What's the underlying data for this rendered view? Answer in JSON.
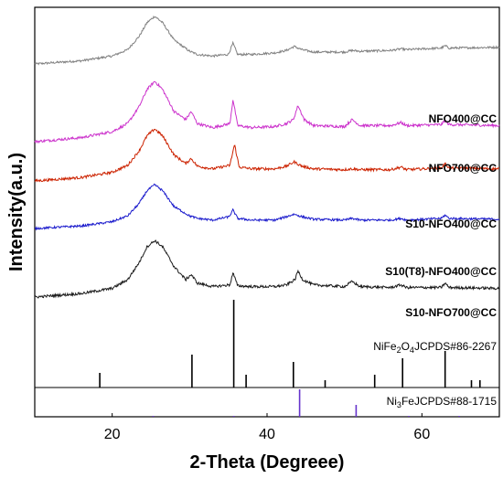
{
  "chart_data": {
    "type": "line",
    "xlabel": "2-Theta (Degreee)",
    "ylabel": "Intensity(a.u.)",
    "xlim": [
      10,
      70
    ],
    "xticks": [
      20,
      40,
      60
    ],
    "yticks": [],
    "grid": false,
    "series": [
      {
        "name": "NFO400@CC",
        "color": "#808080",
        "noise": 0.9,
        "tilt": 2,
        "points": [
          [
            10,
            0
          ],
          [
            16,
            4
          ],
          [
            20,
            10
          ],
          [
            22,
            18
          ],
          [
            23.5,
            35
          ],
          [
            24.5,
            52
          ],
          [
            25.5,
            60
          ],
          [
            26.5,
            52
          ],
          [
            28,
            30
          ],
          [
            30,
            16
          ],
          [
            31,
            12
          ],
          [
            33,
            10
          ],
          [
            35,
            12
          ],
          [
            35.6,
            26
          ],
          [
            36.2,
            12
          ],
          [
            38,
            12
          ],
          [
            41,
            14
          ],
          [
            42.5,
            17
          ],
          [
            43.5,
            22
          ],
          [
            44.5,
            18
          ],
          [
            46,
            15
          ],
          [
            50,
            15
          ],
          [
            51,
            17
          ],
          [
            52,
            16
          ],
          [
            56,
            17
          ],
          [
            57.3,
            19
          ],
          [
            58,
            18
          ],
          [
            62.5,
            20
          ],
          [
            63,
            23
          ],
          [
            63.5,
            20
          ],
          [
            70,
            21
          ]
        ]
      },
      {
        "name": "NFO700@CC",
        "color": "#cc33cc",
        "noise": 1.1,
        "tilt": 2,
        "points": [
          [
            10,
            0
          ],
          [
            16,
            4
          ],
          [
            20,
            10
          ],
          [
            22,
            18
          ],
          [
            23.5,
            35
          ],
          [
            24.5,
            52
          ],
          [
            25.5,
            60
          ],
          [
            26.5,
            52
          ],
          [
            28,
            30
          ],
          [
            29.5,
            22
          ],
          [
            30.2,
            30
          ],
          [
            31,
            18
          ],
          [
            33,
            14
          ],
          [
            35.2,
            18
          ],
          [
            35.6,
            42
          ],
          [
            36.2,
            16
          ],
          [
            38,
            14
          ],
          [
            41,
            15
          ],
          [
            42.5,
            18
          ],
          [
            43.4,
            22
          ],
          [
            44,
            36
          ],
          [
            44.8,
            22
          ],
          [
            46,
            16
          ],
          [
            50,
            15
          ],
          [
            51,
            22
          ],
          [
            52,
            16
          ],
          [
            56,
            16
          ],
          [
            57.3,
            19
          ],
          [
            58,
            16
          ],
          [
            62.5,
            17
          ],
          [
            63,
            21
          ],
          [
            63.5,
            17
          ],
          [
            70,
            16
          ]
        ]
      },
      {
        "name": "S10-NFO400@CC",
        "color": "#cc2200",
        "noise": 1.1,
        "tilt": 2,
        "points": [
          [
            10,
            0
          ],
          [
            16,
            4
          ],
          [
            20,
            10
          ],
          [
            22,
            18
          ],
          [
            23.5,
            35
          ],
          [
            24.5,
            52
          ],
          [
            25.5,
            60
          ],
          [
            26.5,
            52
          ],
          [
            28,
            30
          ],
          [
            29.5,
            20
          ],
          [
            30.2,
            26
          ],
          [
            31,
            17
          ],
          [
            33,
            14
          ],
          [
            35.2,
            18
          ],
          [
            35.8,
            42
          ],
          [
            36.4,
            16
          ],
          [
            38,
            14
          ],
          [
            41,
            14
          ],
          [
            42.5,
            17
          ],
          [
            43.5,
            22
          ],
          [
            44.5,
            17
          ],
          [
            46,
            14
          ],
          [
            50,
            13
          ],
          [
            51,
            14
          ],
          [
            52,
            13
          ],
          [
            56,
            13
          ],
          [
            57.3,
            16
          ],
          [
            58,
            13
          ],
          [
            62.5,
            15
          ],
          [
            63,
            20
          ],
          [
            63.5,
            15
          ],
          [
            70,
            14
          ]
        ]
      },
      {
        "name": "S10(T8)-NFO400@CC",
        "color": "#1a1acc",
        "noise": 0.9,
        "tilt": 0,
        "points": [
          [
            10,
            0
          ],
          [
            16,
            3
          ],
          [
            20,
            8
          ],
          [
            22,
            15
          ],
          [
            23.5,
            30
          ],
          [
            24.5,
            45
          ],
          [
            25.5,
            52
          ],
          [
            26.5,
            45
          ],
          [
            28,
            26
          ],
          [
            30,
            15
          ],
          [
            31,
            12
          ],
          [
            33,
            10
          ],
          [
            35.1,
            14
          ],
          [
            35.6,
            22
          ],
          [
            36.2,
            12
          ],
          [
            38,
            10
          ],
          [
            41,
            10
          ],
          [
            42.5,
            14
          ],
          [
            43.5,
            17
          ],
          [
            44.5,
            14
          ],
          [
            46,
            11
          ],
          [
            50,
            10
          ],
          [
            51,
            12
          ],
          [
            52,
            10
          ],
          [
            56,
            10
          ],
          [
            57.3,
            12
          ],
          [
            58,
            10
          ],
          [
            62.5,
            12
          ],
          [
            63,
            16
          ],
          [
            63.5,
            12
          ],
          [
            70,
            11
          ]
        ]
      },
      {
        "name": "S10-NFO700@CC",
        "color": "#1a1a1a",
        "noise": 1.1,
        "tilt": 0,
        "points": [
          [
            10,
            0
          ],
          [
            16,
            4
          ],
          [
            20,
            10
          ],
          [
            22,
            20
          ],
          [
            23.5,
            40
          ],
          [
            24.5,
            58
          ],
          [
            25.5,
            65
          ],
          [
            26.5,
            58
          ],
          [
            28,
            35
          ],
          [
            29.5,
            20
          ],
          [
            30.2,
            26
          ],
          [
            31,
            16
          ],
          [
            33,
            12
          ],
          [
            35.2,
            14
          ],
          [
            35.6,
            28
          ],
          [
            36.2,
            13
          ],
          [
            38,
            12
          ],
          [
            41,
            12
          ],
          [
            42.5,
            14
          ],
          [
            43.6,
            20
          ],
          [
            44,
            30
          ],
          [
            44.6,
            20
          ],
          [
            46,
            14
          ],
          [
            50,
            12
          ],
          [
            51,
            18
          ],
          [
            52,
            12
          ],
          [
            56,
            11
          ],
          [
            57.3,
            14
          ],
          [
            58,
            11
          ],
          [
            62.5,
            11
          ],
          [
            63,
            16
          ],
          [
            63.5,
            11
          ],
          [
            70,
            10
          ]
        ]
      }
    ],
    "reference_patterns": [
      {
        "name": "NiFe2O4JCPDS#86-2267",
        "color": "#000000",
        "peaks": [
          [
            18.4,
            8
          ],
          [
            30.3,
            18
          ],
          [
            35.7,
            48
          ],
          [
            37.3,
            7
          ],
          [
            43.4,
            14
          ],
          [
            47.5,
            4
          ],
          [
            53.9,
            7
          ],
          [
            57.5,
            16
          ],
          [
            63.0,
            20
          ],
          [
            66.4,
            4
          ],
          [
            67.5,
            4
          ]
        ]
      },
      {
        "name": "Ni3FeJCPDS#88-1715",
        "color": "#6633cc",
        "peaks": [
          [
            25.3,
            1
          ],
          [
            35.7,
            1
          ],
          [
            44.2,
            30
          ],
          [
            51.5,
            13
          ],
          [
            58.3,
            1
          ],
          [
            64.8,
            1
          ]
        ]
      }
    ]
  },
  "labels": {
    "nfo400": "NFO400@CC",
    "nfo700": "NFO700@CC",
    "s10_nfo400": "S10-NFO400@CC",
    "s10t8_nfo400": "S10(T8)-NFO400@CC",
    "s10_nfo700": "S10-NFO700@CC",
    "ref1_pre": "NiFe",
    "ref1_sub1": "2",
    "ref1_mid": "O",
    "ref1_sub2": "4",
    "ref1_post": "JCPDS#86-2267",
    "ref2_pre": "Ni",
    "ref2_sub": "3",
    "ref2_post": "FeJCPDS#88-1715"
  }
}
